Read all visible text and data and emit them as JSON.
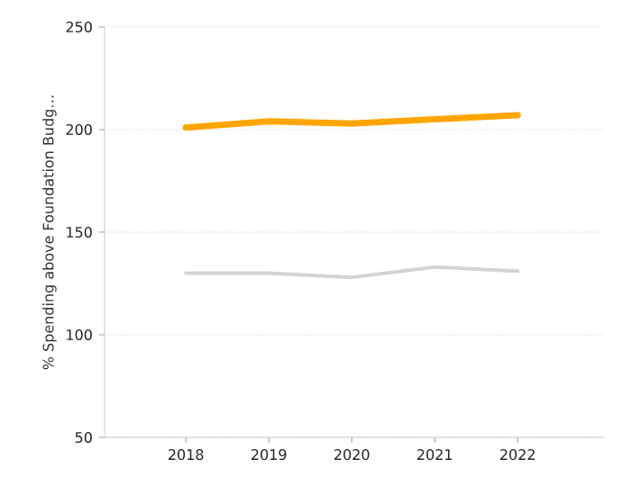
{
  "chart_data": {
    "type": "line",
    "ylabel": "% Spending above Foundation Budg…",
    "categories": [
      "2018",
      "2019",
      "2020",
      "2021",
      "2022"
    ],
    "series": [
      {
        "color": "#ffa500",
        "values": [
          201,
          204,
          203,
          205,
          207
        ]
      },
      {
        "color": "#d3d3d3",
        "values": [
          130,
          130,
          128,
          133,
          131
        ]
      }
    ],
    "ylim": [
      50,
      250
    ],
    "yticks": [
      50,
      100,
      150,
      200,
      250
    ],
    "grid": "y",
    "marker": "none",
    "line_style": "solid"
  }
}
